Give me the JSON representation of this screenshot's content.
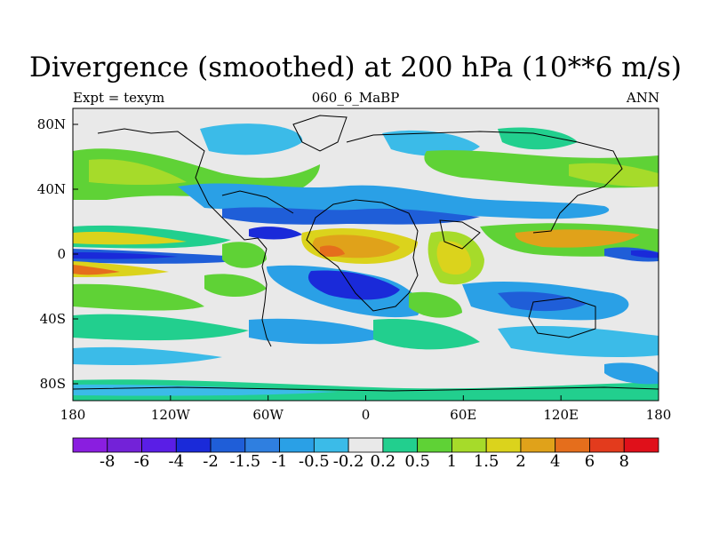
{
  "title": "Divergence (smoothed) at 200 hPa (10**6 m/s)",
  "left_label": "Expt = texym",
  "center_label": "060_6_MaBP",
  "right_label": "ANN",
  "y_ticks": [
    "80N",
    "40N",
    "0",
    "40S",
    "80S"
  ],
  "x_ticks": [
    "180",
    "120W",
    "60W",
    "0",
    "60E",
    "120E",
    "180"
  ],
  "colorbar": {
    "labels": [
      "-8",
      "-6",
      "-4",
      "-2",
      "-1.5",
      "-1",
      "-0.5",
      "-0.2",
      "0.2",
      "0.5",
      "1",
      "1.5",
      "2",
      "4",
      "6",
      "8"
    ],
    "colors": [
      "#8a1ee0",
      "#7322d8",
      "#5a1ee6",
      "#1a2ad9",
      "#1f5ed8",
      "#2f7fe0",
      "#2aa0e6",
      "#3bbbe8",
      "#e9e9e9",
      "#22cf8e",
      "#5fd236",
      "#a6db2a",
      "#dbd31c",
      "#e0a21a",
      "#e56e1c",
      "#e33b1d",
      "#e0101a"
    ]
  },
  "map_data": {
    "projection": "cylindrical equidistant",
    "lon_range": [
      -180,
      180
    ],
    "lat_range": [
      -90,
      90
    ],
    "features": [
      {
        "name": "equatorial eastern Pacific convergence",
        "sign": "negative"
      },
      {
        "name": "equatorial Africa divergence",
        "sign": "positive"
      },
      {
        "name": "western Pacific / Indonesia divergence",
        "sign": "positive"
      },
      {
        "name": "subtropical jet convergence bands",
        "sign": "negative"
      }
    ]
  }
}
